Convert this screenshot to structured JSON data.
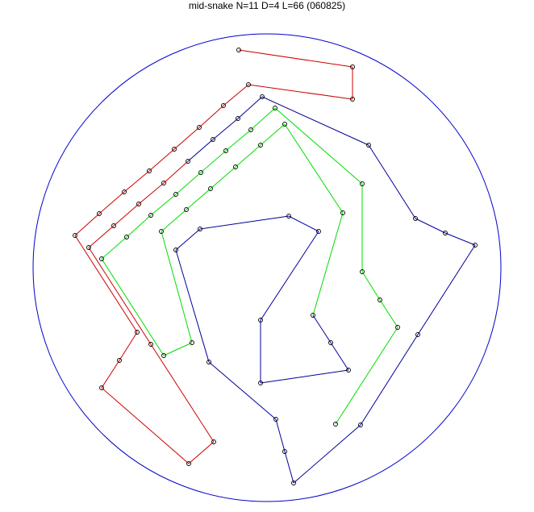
{
  "title": "mid-snake N=11 D=4 L=66 (060825)",
  "colors": {
    "boundary": "#0000cc",
    "red": "#cc0000",
    "blue": "#000099",
    "green": "#00dd00",
    "node": "#000000"
  }
}
